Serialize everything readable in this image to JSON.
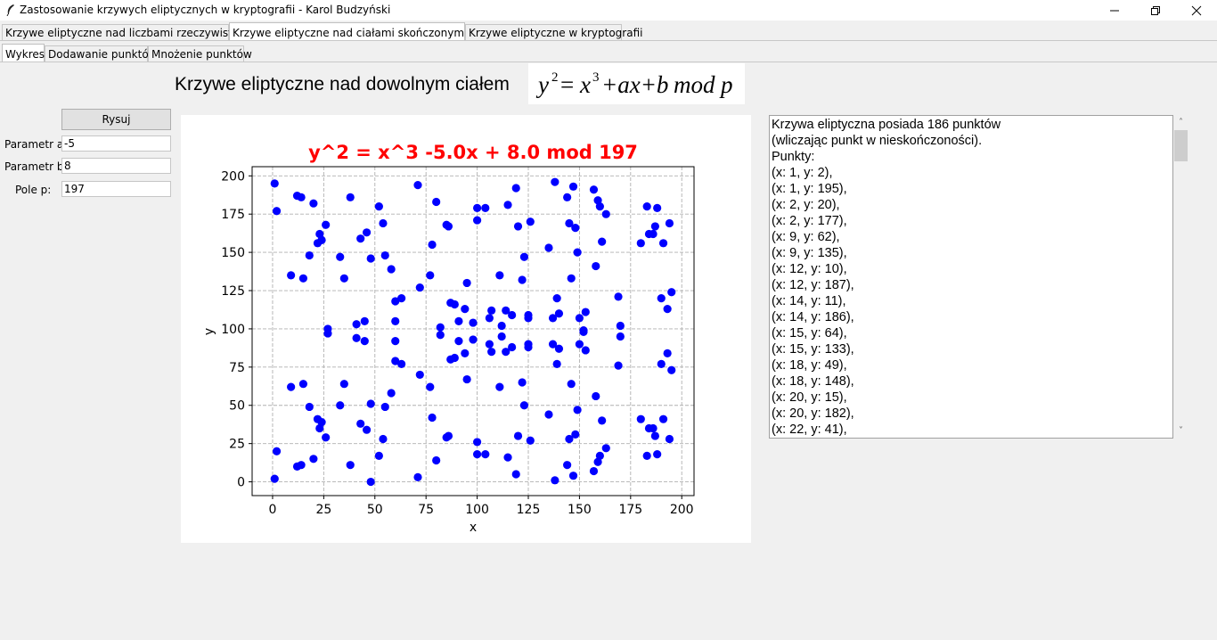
{
  "window": {
    "title": "Zastosowanie krzywych eliptycznych w kryptografii - Karol Budzyński"
  },
  "main_tabs": [
    {
      "label": "Krzywe eliptyczne nad liczbami rzeczywistymi R",
      "active": false
    },
    {
      "label": "Krzywe eliptyczne nad ciałami skończonymi F(p)",
      "active": true
    },
    {
      "label": "Krzywe eliptyczne w kryptografii",
      "active": false
    }
  ],
  "sub_tabs": [
    {
      "label": "Wykres",
      "active": true
    },
    {
      "label": "Dodawanie punktów",
      "active": false
    },
    {
      "label": "Mnożenie punktów",
      "active": false
    }
  ],
  "heading": "Krzywe eliptyczne nad dowolnym ciałem",
  "formula": {
    "lhs": "y",
    "lhs_exp": "2",
    "eq": "=",
    "x": "x",
    "x_exp": "3",
    "rest": "+ax+b",
    "mod": "mod",
    "p": "p"
  },
  "controls": {
    "draw_button": "Rysuj",
    "param_a_label": "Parametr a:",
    "param_a_value": "-5",
    "param_b_label": "Parametr b:",
    "param_b_value": "8",
    "field_p_label": "Pole p:",
    "field_p_value": "197"
  },
  "info": {
    "lines": [
      "Krzywa eliptyczna posiada 186 punktów",
      "(wliczając punkt w nieskończoności).",
      "Punkty:",
      "(x: 1, y: 2),",
      "(x: 1, y: 195),",
      "(x: 2, y: 20),",
      "(x: 2, y: 177),",
      "(x: 9, y: 62),",
      "(x: 9, y: 135),",
      "(x: 12, y: 10),",
      "(x: 12, y: 187),",
      "(x: 14, y: 11),",
      "(x: 14, y: 186),",
      "(x: 15, y: 64),",
      "(x: 15, y: 133),",
      "(x: 18, y: 49),",
      "(x: 18, y: 148),",
      "(x: 20, y: 15),",
      "(x: 20, y: 182),",
      "(x: 22, y: 41),"
    ]
  },
  "colors": {
    "points": "#0000ff",
    "title": "#ff0000",
    "grid": "#b0b0b0"
  },
  "chart_data": {
    "type": "scatter",
    "title": "y^2 = x^3 -5.0x + 8.0 mod 197",
    "xlabel": "x",
    "ylabel": "y",
    "xlim": [
      -10,
      206
    ],
    "ylim": [
      -9,
      206
    ],
    "xticks": [
      0,
      25,
      50,
      75,
      100,
      125,
      150,
      175,
      200
    ],
    "yticks": [
      0,
      25,
      50,
      75,
      100,
      125,
      150,
      175,
      200
    ],
    "grid": true,
    "points": [
      [
        1,
        2
      ],
      [
        1,
        195
      ],
      [
        2,
        20
      ],
      [
        2,
        177
      ],
      [
        9,
        62
      ],
      [
        9,
        135
      ],
      [
        12,
        10
      ],
      [
        12,
        187
      ],
      [
        14,
        11
      ],
      [
        14,
        186
      ],
      [
        15,
        64
      ],
      [
        15,
        133
      ],
      [
        18,
        49
      ],
      [
        18,
        148
      ],
      [
        20,
        15
      ],
      [
        20,
        182
      ],
      [
        22,
        41
      ],
      [
        22,
        156
      ],
      [
        23,
        35
      ],
      [
        23,
        162
      ],
      [
        24,
        39
      ],
      [
        24,
        158
      ],
      [
        26,
        29
      ],
      [
        26,
        168
      ],
      [
        27,
        97
      ],
      [
        27,
        100
      ],
      [
        33,
        50
      ],
      [
        33,
        147
      ],
      [
        35,
        64
      ],
      [
        35,
        133
      ],
      [
        38,
        11
      ],
      [
        38,
        186
      ],
      [
        41,
        94
      ],
      [
        41,
        103
      ],
      [
        43,
        38
      ],
      [
        43,
        159
      ],
      [
        45,
        92
      ],
      [
        45,
        105
      ],
      [
        46,
        34
      ],
      [
        46,
        163
      ],
      [
        48,
        0
      ],
      [
        48,
        51
      ],
      [
        48,
        146
      ],
      [
        52,
        17
      ],
      [
        52,
        180
      ],
      [
        54,
        28
      ],
      [
        54,
        169
      ],
      [
        55,
        49
      ],
      [
        55,
        148
      ],
      [
        58,
        58
      ],
      [
        58,
        139
      ],
      [
        60,
        79
      ],
      [
        60,
        92
      ],
      [
        60,
        105
      ],
      [
        60,
        118
      ],
      [
        63,
        77
      ],
      [
        63,
        120
      ],
      [
        71,
        3
      ],
      [
        71,
        194
      ],
      [
        72,
        70
      ],
      [
        72,
        127
      ],
      [
        77,
        62
      ],
      [
        77,
        135
      ],
      [
        78,
        42
      ],
      [
        78,
        155
      ],
      [
        80,
        14
      ],
      [
        80,
        183
      ],
      [
        82,
        96
      ],
      [
        82,
        101
      ],
      [
        85,
        29
      ],
      [
        85,
        168
      ],
      [
        86,
        30
      ],
      [
        86,
        167
      ],
      [
        87,
        80
      ],
      [
        87,
        117
      ],
      [
        89,
        81
      ],
      [
        89,
        116
      ],
      [
        91,
        92
      ],
      [
        91,
        105
      ],
      [
        94,
        84
      ],
      [
        94,
        113
      ],
      [
        95,
        67
      ],
      [
        95,
        130
      ],
      [
        98,
        93
      ],
      [
        98,
        104
      ],
      [
        100,
        18
      ],
      [
        100,
        26
      ],
      [
        100,
        171
      ],
      [
        100,
        179
      ],
      [
        104,
        18
      ],
      [
        104,
        179
      ],
      [
        106,
        90
      ],
      [
        106,
        107
      ],
      [
        107,
        85
      ],
      [
        107,
        112
      ],
      [
        111,
        62
      ],
      [
        111,
        135
      ],
      [
        112,
        95
      ],
      [
        112,
        102
      ],
      [
        114,
        85
      ],
      [
        114,
        112
      ],
      [
        115,
        16
      ],
      [
        115,
        181
      ],
      [
        117,
        88
      ],
      [
        117,
        109
      ],
      [
        119,
        5
      ],
      [
        119,
        192
      ],
      [
        120,
        30
      ],
      [
        120,
        167
      ],
      [
        122,
        65
      ],
      [
        122,
        132
      ],
      [
        123,
        50
      ],
      [
        123,
        147
      ],
      [
        125,
        88
      ],
      [
        125,
        90
      ],
      [
        125,
        107
      ],
      [
        125,
        109
      ],
      [
        126,
        27
      ],
      [
        126,
        170
      ],
      [
        135,
        44
      ],
      [
        135,
        153
      ],
      [
        137,
        90
      ],
      [
        137,
        107
      ],
      [
        138,
        1
      ],
      [
        138,
        196
      ],
      [
        139,
        77
      ],
      [
        139,
        120
      ],
      [
        140,
        87
      ],
      [
        140,
        110
      ],
      [
        144,
        11
      ],
      [
        144,
        186
      ],
      [
        145,
        28
      ],
      [
        145,
        169
      ],
      [
        146,
        64
      ],
      [
        146,
        133
      ],
      [
        147,
        4
      ],
      [
        147,
        193
      ],
      [
        148,
        31
      ],
      [
        148,
        166
      ],
      [
        149,
        47
      ],
      [
        149,
        150
      ],
      [
        150,
        90
      ],
      [
        150,
        107
      ],
      [
        152,
        99
      ],
      [
        152,
        98
      ],
      [
        153,
        86
      ],
      [
        153,
        111
      ],
      [
        157,
        7
      ],
      [
        157,
        191
      ],
      [
        158,
        56
      ],
      [
        158,
        141
      ],
      [
        159,
        13
      ],
      [
        159,
        184
      ],
      [
        160,
        17
      ],
      [
        160,
        180
      ],
      [
        161,
        40
      ],
      [
        161,
        157
      ],
      [
        163,
        22
      ],
      [
        163,
        175
      ],
      [
        169,
        76
      ],
      [
        169,
        121
      ],
      [
        170,
        95
      ],
      [
        170,
        102
      ],
      [
        180,
        41
      ],
      [
        180,
        156
      ],
      [
        183,
        17
      ],
      [
        183,
        180
      ],
      [
        184,
        35
      ],
      [
        184,
        162
      ],
      [
        186,
        35
      ],
      [
        186,
        162
      ],
      [
        187,
        30
      ],
      [
        187,
        167
      ],
      [
        188,
        18
      ],
      [
        188,
        179
      ],
      [
        190,
        77
      ],
      [
        190,
        120
      ],
      [
        191,
        41
      ],
      [
        191,
        156
      ],
      [
        193,
        84
      ],
      [
        193,
        113
      ],
      [
        194,
        28
      ],
      [
        194,
        169
      ],
      [
        195,
        73
      ],
      [
        195,
        124
      ]
    ]
  }
}
